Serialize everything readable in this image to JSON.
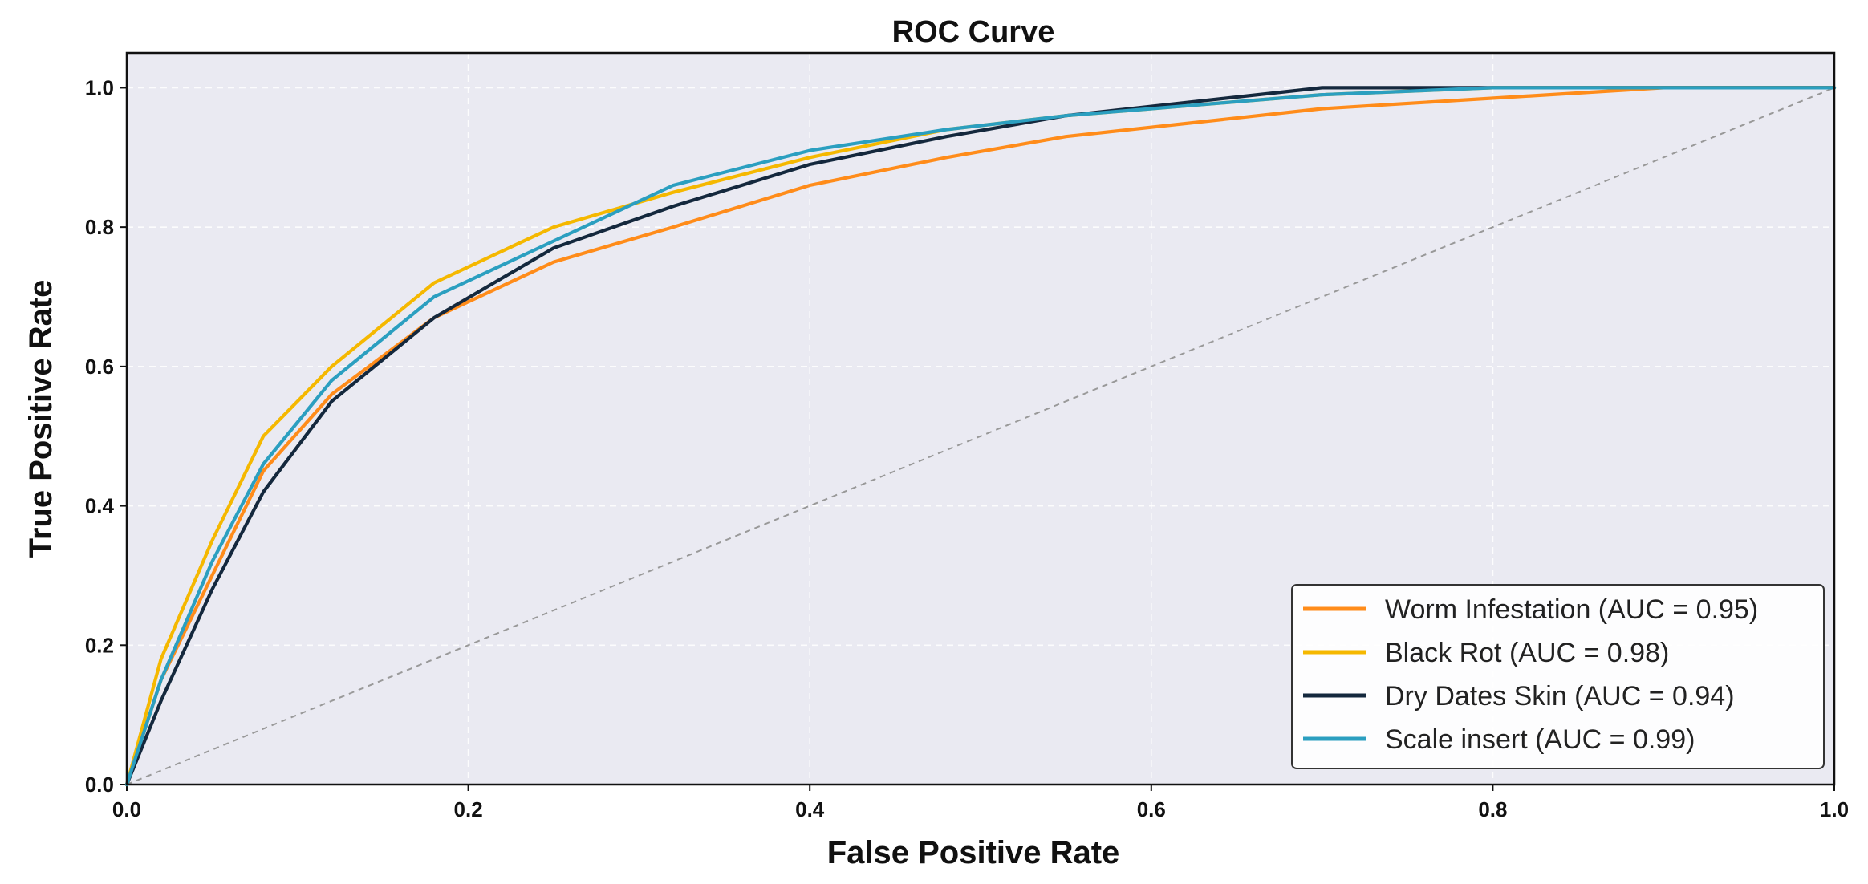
{
  "chart_data": {
    "type": "line",
    "title": "ROC Curve",
    "xlabel": "False Positive Rate",
    "ylabel": "True Positive Rate",
    "xlim": [
      0,
      1
    ],
    "ylim": [
      0,
      1.05
    ],
    "xticks": [
      0.0,
      0.2,
      0.4,
      0.6,
      0.8,
      1.0
    ],
    "yticks": [
      0.0,
      0.2,
      0.4,
      0.6,
      0.8,
      1.0
    ],
    "xtick_labels": [
      "0.0",
      "0.2",
      "0.4",
      "0.6",
      "0.8",
      "1.0"
    ],
    "ytick_labels": [
      "0.0",
      "0.2",
      "0.4",
      "0.6",
      "0.8",
      "1.0"
    ],
    "grid": true,
    "legend_position": "lower-right",
    "background": "#eaeaf2",
    "diagonal": {
      "x": [
        0,
        1
      ],
      "y": [
        0,
        1
      ],
      "color": "#999999",
      "style": "dashed"
    },
    "series": [
      {
        "name": "Worm Infestation (AUC = 0.95)",
        "color": "#ff8c1a",
        "x": [
          0,
          0.02,
          0.05,
          0.08,
          0.12,
          0.18,
          0.25,
          0.32,
          0.4,
          0.48,
          0.55,
          0.7,
          0.9,
          1.0
        ],
        "y": [
          0,
          0.15,
          0.3,
          0.45,
          0.56,
          0.67,
          0.75,
          0.8,
          0.86,
          0.9,
          0.93,
          0.97,
          1.0,
          1.0
        ]
      },
      {
        "name": "Black Rot (AUC = 0.98)",
        "color": "#f5b800",
        "x": [
          0,
          0.02,
          0.05,
          0.08,
          0.12,
          0.18,
          0.25,
          0.32,
          0.4,
          0.48,
          0.55,
          0.7,
          0.8,
          1.0
        ],
        "y": [
          0,
          0.18,
          0.35,
          0.5,
          0.6,
          0.72,
          0.8,
          0.85,
          0.9,
          0.94,
          0.96,
          0.99,
          1.0,
          1.0
        ]
      },
      {
        "name": "Dry Dates Skin (AUC = 0.94)",
        "color": "#14283d",
        "x": [
          0,
          0.02,
          0.05,
          0.08,
          0.12,
          0.18,
          0.25,
          0.32,
          0.4,
          0.48,
          0.55,
          0.7,
          0.8,
          1.0
        ],
        "y": [
          0,
          0.12,
          0.28,
          0.42,
          0.55,
          0.67,
          0.77,
          0.83,
          0.89,
          0.93,
          0.96,
          1.0,
          1.0,
          1.0
        ]
      },
      {
        "name": "Scale insert (AUC = 0.99)",
        "color": "#2b9fc0",
        "x": [
          0,
          0.02,
          0.05,
          0.08,
          0.12,
          0.18,
          0.25,
          0.32,
          0.4,
          0.48,
          0.55,
          0.7,
          0.8,
          1.0
        ],
        "y": [
          0,
          0.15,
          0.32,
          0.46,
          0.58,
          0.7,
          0.78,
          0.86,
          0.91,
          0.94,
          0.96,
          0.99,
          1.0,
          1.0
        ]
      }
    ]
  }
}
